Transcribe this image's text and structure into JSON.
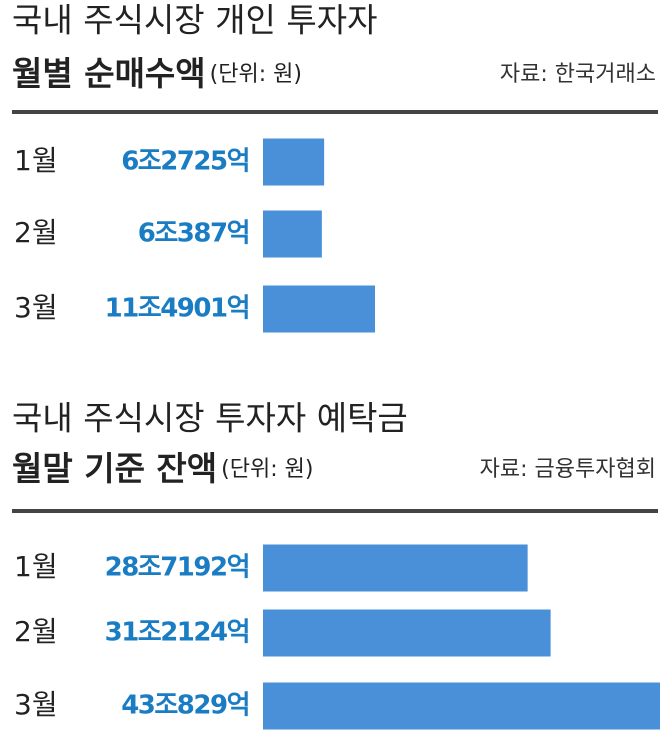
{
  "chart_data": [
    {
      "type": "bar",
      "title": "국내 주식시장 개인 투자자",
      "subtitle": "월별 순매수액",
      "unit_note": "(단위: 원)",
      "source": "자료: 한국거래소",
      "categories": [
        "1월",
        "2월",
        "3월"
      ],
      "values": [
        62725,
        60387,
        114901
      ],
      "value_labels": [
        "6조2725억",
        "6조387억",
        "11조4901억"
      ],
      "color": "#4a90d9",
      "label_color": "#1a7dc4"
    },
    {
      "type": "bar",
      "title": "국내 주식시장 투자자 예탁금",
      "subtitle": "월말 기준 잔액",
      "unit_note": "(단위: 원)",
      "source": "자료: 금융투자협회",
      "categories": [
        "1월",
        "2월",
        "3월"
      ],
      "values": [
        287192,
        312124,
        430829
      ],
      "value_labels": [
        "28조7192억",
        "31조2124억",
        "43조829억"
      ],
      "color": "#4a90d9",
      "label_color": "#1a7dc4"
    }
  ]
}
